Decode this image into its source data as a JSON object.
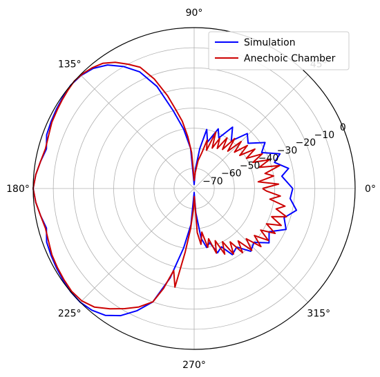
{
  "chart_data": {
    "type": "polar-line",
    "angle_unit": "degrees",
    "radial_range": [
      -80,
      0
    ],
    "radial_ticks": [
      -70,
      -60,
      -50,
      -40,
      -30,
      -20,
      -10,
      0
    ],
    "radial_tick_labels": [
      "−70",
      "−60",
      "−50",
      "−40",
      "−30",
      "−20",
      "−10",
      "0"
    ],
    "angle_ticks": [
      0,
      45,
      90,
      135,
      180,
      225,
      270,
      315
    ],
    "angle_tick_labels": [
      "0°",
      "45°",
      "90°",
      "135°",
      "180°",
      "225°",
      "270°",
      "315°"
    ],
    "grid": true,
    "legend_position": "top-right",
    "series": [
      {
        "name": "Simulation",
        "color": "#0000ff",
        "points": [
          [
            0,
            -31
          ],
          [
            8,
            -36
          ],
          [
            12,
            -32
          ],
          [
            18,
            -38
          ],
          [
            22,
            -34
          ],
          [
            28,
            -42
          ],
          [
            33,
            -38
          ],
          [
            40,
            -45
          ],
          [
            46,
            -42
          ],
          [
            52,
            -50
          ],
          [
            58,
            -44
          ],
          [
            64,
            -52
          ],
          [
            68,
            -48
          ],
          [
            74,
            -56
          ],
          [
            78,
            -50
          ],
          [
            82,
            -60
          ],
          [
            86,
            -70
          ],
          [
            90,
            -78
          ],
          [
            95,
            -60
          ],
          [
            100,
            -50
          ],
          [
            105,
            -40
          ],
          [
            110,
            -26
          ],
          [
            115,
            -16
          ],
          [
            120,
            -10
          ],
          [
            125,
            -5
          ],
          [
            130,
            -2
          ],
          [
            135,
            -0.5
          ],
          [
            140,
            0
          ],
          [
            145,
            -0.5
          ],
          [
            150,
            -1
          ],
          [
            155,
            -1.5
          ],
          [
            160,
            -2
          ],
          [
            165,
            -4
          ],
          [
            170,
            -2.5
          ],
          [
            175,
            -1
          ],
          [
            180,
            0
          ],
          [
            185,
            -1
          ],
          [
            190,
            -2.5
          ],
          [
            195,
            -4
          ],
          [
            200,
            -2
          ],
          [
            205,
            -1.5
          ],
          [
            210,
            -1
          ],
          [
            215,
            -0.5
          ],
          [
            220,
            0
          ],
          [
            225,
            0
          ],
          [
            230,
            -1
          ],
          [
            235,
            -3
          ],
          [
            240,
            -7
          ],
          [
            245,
            -13
          ],
          [
            250,
            -20
          ],
          [
            255,
            -34
          ],
          [
            260,
            -50
          ],
          [
            265,
            -62
          ],
          [
            270,
            -78
          ],
          [
            274,
            -68
          ],
          [
            278,
            -55
          ],
          [
            282,
            -50
          ],
          [
            286,
            -52
          ],
          [
            290,
            -46
          ],
          [
            295,
            -48
          ],
          [
            300,
            -42
          ],
          [
            306,
            -44
          ],
          [
            312,
            -38
          ],
          [
            318,
            -40
          ],
          [
            324,
            -34
          ],
          [
            330,
            -37
          ],
          [
            336,
            -30
          ],
          [
            342,
            -33
          ],
          [
            348,
            -28
          ],
          [
            354,
            -32
          ],
          [
            360,
            -31
          ]
        ]
      },
      {
        "name": "Anechoic Chamber",
        "color": "#cc0000",
        "points": [
          [
            0,
            -46
          ],
          [
            3,
            -38
          ],
          [
            6,
            -48
          ],
          [
            9,
            -40
          ],
          [
            12,
            -44
          ],
          [
            15,
            -36
          ],
          [
            18,
            -46
          ],
          [
            21,
            -40
          ],
          [
            24,
            -48
          ],
          [
            27,
            -42
          ],
          [
            30,
            -50
          ],
          [
            33,
            -44
          ],
          [
            36,
            -52
          ],
          [
            39,
            -46
          ],
          [
            42,
            -53
          ],
          [
            45,
            -47
          ],
          [
            48,
            -55
          ],
          [
            51,
            -48
          ],
          [
            54,
            -56
          ],
          [
            57,
            -50
          ],
          [
            60,
            -57
          ],
          [
            63,
            -52
          ],
          [
            66,
            -58
          ],
          [
            69,
            -50
          ],
          [
            72,
            -60
          ],
          [
            75,
            -55
          ],
          [
            78,
            -62
          ],
          [
            82,
            -66
          ],
          [
            86,
            -72
          ],
          [
            90,
            -76
          ],
          [
            94,
            -62
          ],
          [
            97,
            -54
          ],
          [
            100,
            -46
          ],
          [
            103,
            -40
          ],
          [
            106,
            -32
          ],
          [
            110,
            -22
          ],
          [
            114,
            -14
          ],
          [
            118,
            -10
          ],
          [
            122,
            -6
          ],
          [
            126,
            -3
          ],
          [
            130,
            -1.5
          ],
          [
            134,
            -0.5
          ],
          [
            138,
            0
          ],
          [
            142,
            -0.5
          ],
          [
            146,
            -1
          ],
          [
            150,
            -1.5
          ],
          [
            155,
            -2
          ],
          [
            160,
            -3
          ],
          [
            165,
            -3.5
          ],
          [
            170,
            -2.5
          ],
          [
            175,
            -1
          ],
          [
            180,
            0
          ],
          [
            185,
            -1
          ],
          [
            190,
            -2.5
          ],
          [
            195,
            -3.5
          ],
          [
            200,
            -3
          ],
          [
            205,
            -2
          ],
          [
            210,
            -1.5
          ],
          [
            215,
            -1
          ],
          [
            220,
            -0.5
          ],
          [
            225,
            -1
          ],
          [
            230,
            -3
          ],
          [
            235,
            -7
          ],
          [
            240,
            -11
          ],
          [
            245,
            -15
          ],
          [
            250,
            -20
          ],
          [
            253,
            -28
          ],
          [
            256,
            -38
          ],
          [
            259,
            -30
          ],
          [
            262,
            -48
          ],
          [
            265,
            -60
          ],
          [
            268,
            -70
          ],
          [
            271,
            -76
          ],
          [
            274,
            -58
          ],
          [
            277,
            -52
          ],
          [
            280,
            -58
          ],
          [
            283,
            -50
          ],
          [
            286,
            -54
          ],
          [
            289,
            -46
          ],
          [
            292,
            -52
          ],
          [
            295,
            -44
          ],
          [
            298,
            -50
          ],
          [
            301,
            -42
          ],
          [
            304,
            -48
          ],
          [
            307,
            -40
          ],
          [
            310,
            -46
          ],
          [
            313,
            -38
          ],
          [
            316,
            -44
          ],
          [
            319,
            -36
          ],
          [
            322,
            -42
          ],
          [
            325,
            -35
          ],
          [
            328,
            -41
          ],
          [
            331,
            -34
          ],
          [
            334,
            -40
          ],
          [
            337,
            -33
          ],
          [
            340,
            -39
          ],
          [
            343,
            -32
          ],
          [
            346,
            -38
          ],
          [
            349,
            -34
          ],
          [
            352,
            -42
          ],
          [
            355,
            -37
          ],
          [
            358,
            -44
          ],
          [
            360,
            -46
          ]
        ]
      }
    ]
  }
}
